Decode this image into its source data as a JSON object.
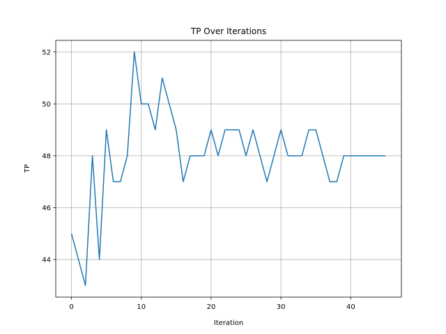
{
  "chart_data": {
    "type": "line",
    "title": "TP Over Iterations",
    "xlabel": "Iteration",
    "ylabel": "TP",
    "xlim": [
      -2.25,
      47.25
    ],
    "ylim": [
      42.55,
      52.45
    ],
    "xticks": [
      0,
      10,
      20,
      30,
      40
    ],
    "yticks": [
      44,
      46,
      48,
      50,
      52
    ],
    "xtick_labels": [
      "0",
      "10",
      "20",
      "30",
      "40"
    ],
    "ytick_labels": [
      "44",
      "46",
      "48",
      "50",
      "52"
    ],
    "grid": true,
    "series": [
      {
        "color": "#1f77b4",
        "x": [
          0,
          1,
          2,
          3,
          4,
          5,
          6,
          7,
          8,
          9,
          10,
          11,
          12,
          13,
          14,
          15,
          16,
          17,
          18,
          19,
          20,
          21,
          22,
          23,
          24,
          25,
          26,
          27,
          28,
          29,
          30,
          31,
          32,
          33,
          34,
          35,
          36,
          37,
          38,
          39,
          40,
          41,
          42,
          43,
          44,
          45
        ],
        "y": [
          45,
          44,
          43,
          48,
          44,
          49,
          47,
          47,
          48,
          52,
          50,
          50,
          49,
          51,
          50,
          49,
          47,
          48,
          48,
          48,
          49,
          48,
          49,
          49,
          49,
          48,
          49,
          48,
          47,
          48,
          49,
          48,
          48,
          48,
          49,
          49,
          48,
          47,
          47,
          48,
          48,
          48,
          48,
          48,
          48,
          48
        ]
      }
    ]
  }
}
